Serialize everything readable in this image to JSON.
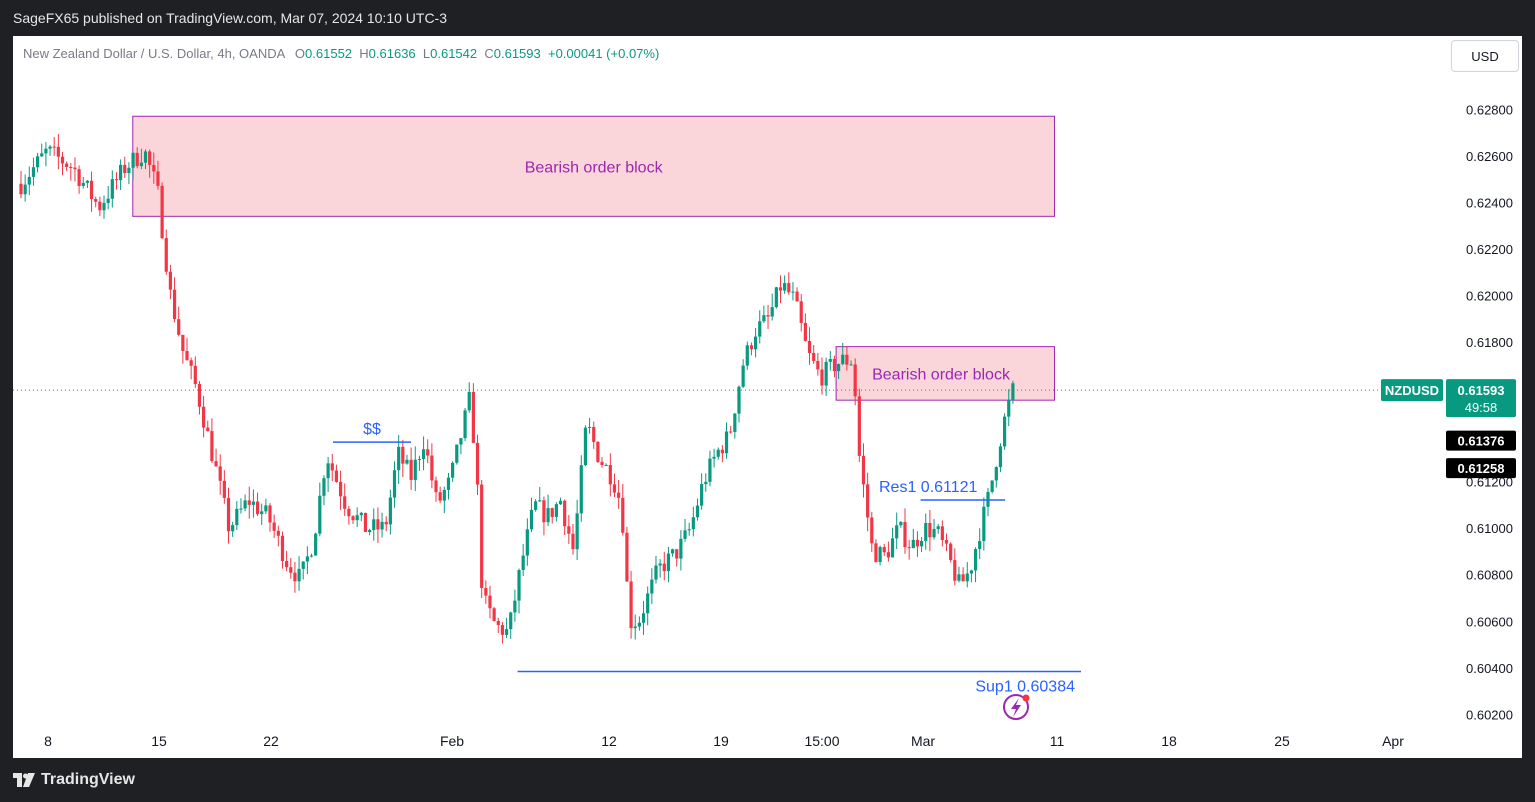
{
  "header": {
    "publisher_text": "SageFX65 published on TradingView.com, Mar 07, 2024 10:10 UTC-3"
  },
  "legend": {
    "symbol_desc": "New Zealand Dollar / U.S. Dollar, 4h, OANDA",
    "o_label": "O",
    "o_value": "0.61552",
    "h_label": "H",
    "h_value": "0.61636",
    "l_label": "L",
    "l_value": "0.61542",
    "c_label": "C",
    "c_value": "0.61593",
    "change": "+0.00041 (+0.07%)"
  },
  "currency_button": "USD",
  "footer": {
    "brand": "TradingView"
  },
  "colors": {
    "up": "#089981",
    "down": "#f23645",
    "zone_fill": "#fad6da",
    "zone_border": "#9c27b0",
    "zone_text": "#9c27b0",
    "level_line": "#2962ff",
    "price_tag": "#089981",
    "dark_tag": "#000000"
  },
  "chart_data": {
    "type": "candlestick",
    "symbol": "NZDUSD",
    "timeframe": "4h",
    "x_ticks": [
      "8",
      "15",
      "22",
      "Feb",
      "12",
      "19",
      "15:00",
      "Mar",
      "11",
      "18",
      "25",
      "Apr"
    ],
    "y_ticks": [
      "0.62800",
      "0.62600",
      "0.62400",
      "0.62200",
      "0.62000",
      "0.61800",
      "0.61600",
      "0.61400",
      "0.61200",
      "0.61000",
      "0.60800",
      "0.60600",
      "0.60400",
      "0.60200"
    ],
    "ylim": [
      0.6015,
      0.629
    ],
    "current_price": {
      "symbol_label": "NZDUSD",
      "value": "0.61593",
      "countdown": "49:58"
    },
    "extra_price_tags": [
      "0.61376",
      "0.61258"
    ],
    "zones": [
      {
        "label": "Bearish order block",
        "top": 0.6277,
        "bottom": 0.6234,
        "from": 0.086,
        "to": 0.795
      },
      {
        "label": "Bearish order block",
        "top": 0.6178,
        "bottom": 0.6155,
        "from": 0.627,
        "to": 0.795
      }
    ],
    "levels": [
      {
        "label": "$$",
        "price": 0.6137
      },
      {
        "label": "Res1 0.61121",
        "price": 0.61121
      },
      {
        "label": "Sup1  0.60384",
        "price": 0.60384
      }
    ],
    "anchor_points": [
      {
        "x": 0.0,
        "y": 0.6248
      },
      {
        "x": 0.02,
        "y": 0.6262
      },
      {
        "x": 0.04,
        "y": 0.6255
      },
      {
        "x": 0.06,
        "y": 0.6238
      },
      {
        "x": 0.08,
        "y": 0.6255
      },
      {
        "x": 0.095,
        "y": 0.6262
      },
      {
        "x": 0.105,
        "y": 0.6245
      },
      {
        "x": 0.115,
        "y": 0.62
      },
      {
        "x": 0.125,
        "y": 0.6175
      },
      {
        "x": 0.135,
        "y": 0.616
      },
      {
        "x": 0.15,
        "y": 0.6125
      },
      {
        "x": 0.16,
        "y": 0.61
      },
      {
        "x": 0.175,
        "y": 0.6112
      },
      {
        "x": 0.19,
        "y": 0.6105
      },
      {
        "x": 0.205,
        "y": 0.6085
      },
      {
        "x": 0.215,
        "y": 0.6078
      },
      {
        "x": 0.225,
        "y": 0.6095
      },
      {
        "x": 0.235,
        "y": 0.6132
      },
      {
        "x": 0.25,
        "y": 0.611
      },
      {
        "x": 0.265,
        "y": 0.61
      },
      {
        "x": 0.28,
        "y": 0.61
      },
      {
        "x": 0.29,
        "y": 0.6132
      },
      {
        "x": 0.3,
        "y": 0.6122
      },
      {
        "x": 0.31,
        "y": 0.6138
      },
      {
        "x": 0.32,
        "y": 0.611
      },
      {
        "x": 0.33,
        "y": 0.612
      },
      {
        "x": 0.345,
        "y": 0.6155
      },
      {
        "x": 0.35,
        "y": 0.613
      },
      {
        "x": 0.355,
        "y": 0.607
      },
      {
        "x": 0.365,
        "y": 0.6058
      },
      {
        "x": 0.375,
        "y": 0.6055
      },
      {
        "x": 0.385,
        "y": 0.6085
      },
      {
        "x": 0.395,
        "y": 0.611
      },
      {
        "x": 0.405,
        "y": 0.6105
      },
      {
        "x": 0.415,
        "y": 0.6112
      },
      {
        "x": 0.425,
        "y": 0.609
      },
      {
        "x": 0.435,
        "y": 0.6145
      },
      {
        "x": 0.445,
        "y": 0.613
      },
      {
        "x": 0.455,
        "y": 0.6122
      },
      {
        "x": 0.462,
        "y": 0.611
      },
      {
        "x": 0.468,
        "y": 0.606
      },
      {
        "x": 0.475,
        "y": 0.606
      },
      {
        "x": 0.49,
        "y": 0.6082
      },
      {
        "x": 0.505,
        "y": 0.609
      },
      {
        "x": 0.515,
        "y": 0.61
      },
      {
        "x": 0.525,
        "y": 0.612
      },
      {
        "x": 0.535,
        "y": 0.6132
      },
      {
        "x": 0.545,
        "y": 0.614
      },
      {
        "x": 0.555,
        "y": 0.617
      },
      {
        "x": 0.565,
        "y": 0.6185
      },
      {
        "x": 0.575,
        "y": 0.619
      },
      {
        "x": 0.585,
        "y": 0.6205
      },
      {
        "x": 0.595,
        "y": 0.6198
      },
      {
        "x": 0.605,
        "y": 0.6175
      },
      {
        "x": 0.615,
        "y": 0.6165
      },
      {
        "x": 0.625,
        "y": 0.617
      },
      {
        "x": 0.632,
        "y": 0.6172
      },
      {
        "x": 0.64,
        "y": 0.6172
      },
      {
        "x": 0.645,
        "y": 0.613
      },
      {
        "x": 0.65,
        "y": 0.611
      },
      {
        "x": 0.655,
        "y": 0.609
      },
      {
        "x": 0.665,
        "y": 0.6088
      },
      {
        "x": 0.675,
        "y": 0.61
      },
      {
        "x": 0.685,
        "y": 0.6092
      },
      {
        "x": 0.695,
        "y": 0.61
      },
      {
        "x": 0.705,
        "y": 0.6098
      },
      {
        "x": 0.715,
        "y": 0.6085
      },
      {
        "x": 0.722,
        "y": 0.6075
      },
      {
        "x": 0.73,
        "y": 0.6082
      },
      {
        "x": 0.738,
        "y": 0.61
      },
      {
        "x": 0.745,
        "y": 0.6115
      },
      {
        "x": 0.752,
        "y": 0.6135
      },
      {
        "x": 0.758,
        "y": 0.615
      },
      {
        "x": 0.763,
        "y": 0.6159
      }
    ]
  }
}
